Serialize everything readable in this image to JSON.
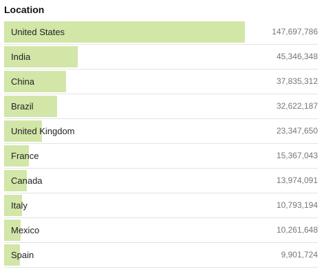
{
  "title": "Location",
  "colors": {
    "bar": "#d2e6a8",
    "value_text": "#777777",
    "divider": "#e3e3e3"
  },
  "chart_data": {
    "type": "bar",
    "orientation": "horizontal",
    "title": "Location",
    "categories": [
      "United States",
      "India",
      "China",
      "Brazil",
      "United Kingdom",
      "France",
      "Canada",
      "Italy",
      "Mexico",
      "Spain"
    ],
    "values": [
      147697786,
      45346348,
      37835312,
      32622187,
      23347650,
      15367043,
      13974091,
      10793194,
      10261648,
      9901724
    ],
    "value_labels": [
      "147,697,786",
      "45,346,348",
      "37,835,312",
      "32,622,187",
      "23,347,650",
      "15,367,043",
      "13,974,091",
      "10,793,194",
      "10,261,648",
      "9,901,724"
    ],
    "grid": false,
    "legend": "none"
  }
}
